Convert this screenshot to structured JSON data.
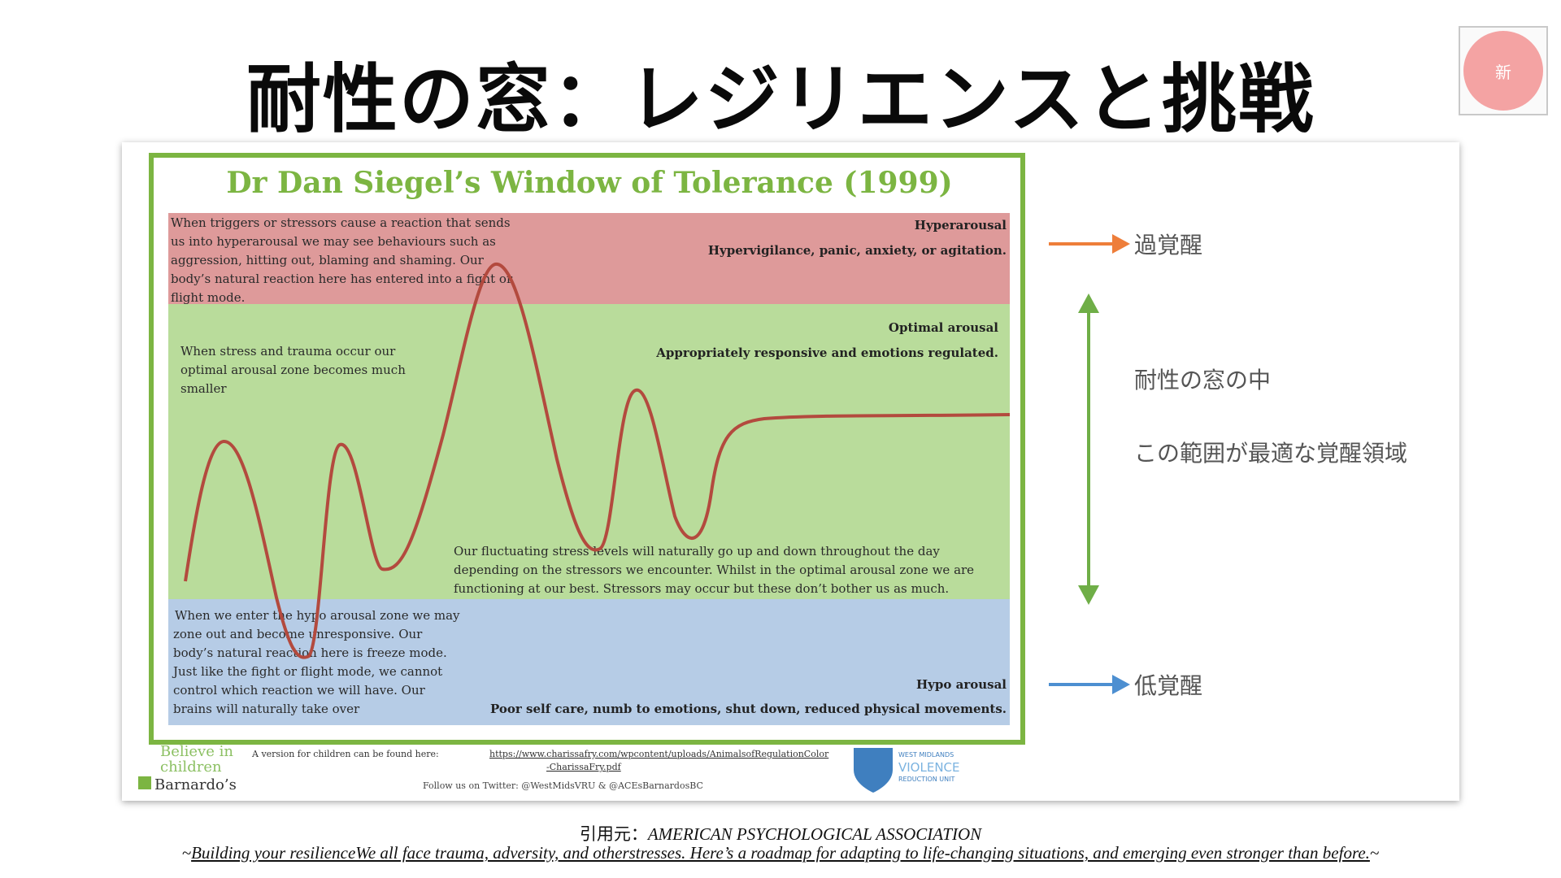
{
  "title": "耐性の窓：レジリエンスと挑戦",
  "badge": "新",
  "figure": {
    "heading": "Dr Dan Siegel’s Window of Tolerance (1999)",
    "hyper": {
      "title": "Hyperarousal",
      "subtitle": "Hypervigilance, panic, anxiety, or agitation.",
      "lines": [
        "When triggers or stressors cause a reaction that sends",
        "us into hyperarousal we may see behaviours such as",
        "aggression, hitting out, blaming and shaming.  Our",
        "body’s natural reaction here has entered into a fight or",
        "flight mode."
      ]
    },
    "optimal": {
      "title": "Optimal arousal",
      "subtitle": "Appropriately responsive and emotions regulated.",
      "left_lines": [
        "When stress and trauma occur our",
        "optimal arousal zone becomes much",
        "smaller"
      ],
      "bottom_lines": [
        "Our fluctuating stress levels will naturally go up and down throughout the day",
        "depending on the stressors we encounter.  Whilst in the optimal arousal zone we are",
        "functioning at our best. Stressors may occur but these don’t bother us as much."
      ]
    },
    "hypo": {
      "title": "Hypo arousal",
      "subtitle": "Poor self care, numb to emotions, shut down, reduced physical movements.",
      "lines": [
        "When we enter the hypo arousal zone we may",
        "zone out and become unresponsive. Our",
        "body’s natural reaction here is freeze mode.",
        "Just like the fight or flight mode, we cannot",
        "control which reaction we will have. Our",
        "brains will naturally take over"
      ]
    },
    "footer": {
      "believe": [
        "Believe in",
        "children"
      ],
      "barnardos": "Barnardo’s",
      "version_text": "A version for children can be found here:",
      "link_1": "https://www.charissafry.com/wpcontent/uploads/AnimalsofRegulationColor",
      "link_2": "-CharissaFry.pdf",
      "follow": "Follow us on Twitter: @WestMidsVRU & @ACEsBarnardosBC",
      "vru_lines": [
        "WEST MIDLANDS",
        "VIOLENCE",
        "REDUCTION UNIT"
      ]
    },
    "labels": {
      "hyper": "過覚醒",
      "inside_1": "耐性の窓の中",
      "inside_2": "この範囲が最適な覚醒領域",
      "hypo": "低覚醒"
    }
  },
  "citation": {
    "prefix": "引用元：",
    "source": "AMERICAN PSYCHOLOGICAL ASSOCIATION",
    "tilde_open": "~",
    "article": "Building your resilienceWe all face trauma, adversity, and otherstresses. Here’s a roadmap for adapting to life-changing situations, and emerging even stronger than before.",
    "tilde_close": "~"
  },
  "colors": {
    "green_frame": "#7cb542",
    "hyper_zone": "#de9a9a",
    "optimal_zone": "#b9dc9b",
    "hypo_zone": "#b6cce6",
    "curve": "#b34a3e",
    "arrow_orange": "#ee7e3a",
    "arrow_green": "#6fae47",
    "arrow_blue": "#4d8fd1"
  }
}
